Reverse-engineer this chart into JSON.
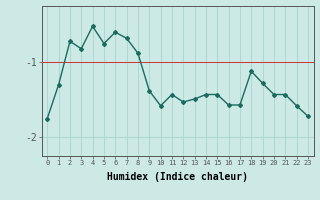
{
  "x": [
    0,
    1,
    2,
    3,
    4,
    5,
    6,
    7,
    8,
    9,
    10,
    11,
    12,
    13,
    14,
    15,
    16,
    17,
    18,
    19,
    20,
    21,
    22,
    23
  ],
  "y": [
    -1.75,
    -1.3,
    -0.72,
    -0.82,
    -0.52,
    -0.75,
    -0.6,
    -0.68,
    -0.88,
    -1.38,
    -1.58,
    -1.43,
    -1.53,
    -1.49,
    -1.43,
    -1.43,
    -1.57,
    -1.57,
    -1.12,
    -1.28,
    -1.43,
    -1.43,
    -1.58,
    -1.72
  ],
  "line_color": "#1a6b5e",
  "marker": "D",
  "marker_size": 2.0,
  "line_width": 1.0,
  "xlabel": "Humidex (Indice chaleur)",
  "yticks": [
    -2,
    -1
  ],
  "ylim": [
    -2.25,
    -0.25
  ],
  "xlim": [
    -0.5,
    23.5
  ],
  "xtick_labels": [
    "0",
    "1",
    "2",
    "3",
    "4",
    "5",
    "6",
    "7",
    "8",
    "9",
    "10",
    "11",
    "12",
    "13",
    "14",
    "15",
    "16",
    "17",
    "18",
    "19",
    "20",
    "21",
    "22",
    "23"
  ],
  "bg_color": "#cce9e5",
  "grid_color": "#b0d8d3",
  "axes_color": "#555555",
  "hline_color": "#cc3333",
  "hline_y": -1
}
